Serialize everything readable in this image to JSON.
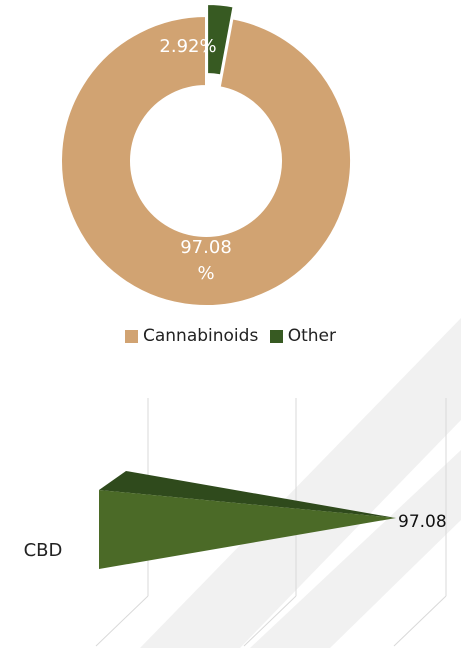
{
  "colors": {
    "cannabinoids": "#D1A372",
    "other": "#375A22",
    "cone_front": "#4B6A27",
    "cone_back": "#2F4A1C",
    "grid": "#D9D9D9"
  },
  "chart_data": [
    {
      "type": "pie",
      "donut": true,
      "categories": [
        "Cannabinoids",
        "Other"
      ],
      "values": [
        97.08,
        2.92
      ],
      "data_labels": [
        "97.08\n%",
        "2.92%"
      ],
      "legend": "bottom"
    },
    {
      "type": "bar",
      "orientation": "horizontal",
      "style": "3d-cone",
      "categories": [
        "CBD"
      ],
      "values": [
        97.08
      ],
      "data_labels": [
        "97.08"
      ],
      "grid": true
    }
  ]
}
